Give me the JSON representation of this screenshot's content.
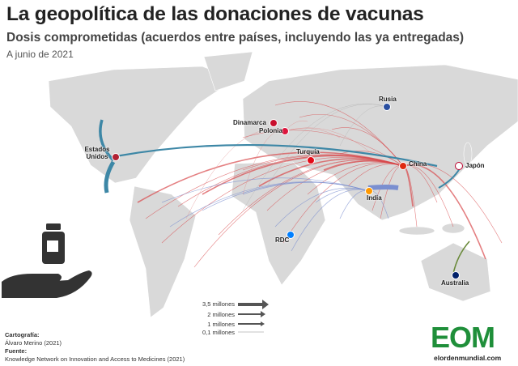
{
  "header": {
    "title": "La geopolítica de las donaciones de vacunas",
    "subtitle": "Dosis comprometidas (acuerdos entre países, incluyendo las ya entregadas)",
    "date": "A junio de 2021"
  },
  "countries": [
    {
      "label": "Rusia"
    },
    {
      "label": "Dinamarca"
    },
    {
      "label": "Polonia"
    },
    {
      "label": "Turquía"
    },
    {
      "label": "China"
    },
    {
      "label": "Japón"
    },
    {
      "label": "India"
    },
    {
      "label": "Estados Unidos"
    },
    {
      "label": "RDC"
    },
    {
      "label": "Australia"
    }
  ],
  "legend": {
    "items": [
      "3,5 millones",
      "2 millones",
      "1 millones",
      "0,1 millones"
    ]
  },
  "credits": {
    "cartography_label": "Cartografía:",
    "cartography": "Álvaro Merino (2021)",
    "source_label": "Fuente:",
    "source": "Knowledge Network on Innovation and Access to Medicines (2021)"
  },
  "logo": {
    "mark": "EOM",
    "site": "elordenmundial.com"
  }
}
